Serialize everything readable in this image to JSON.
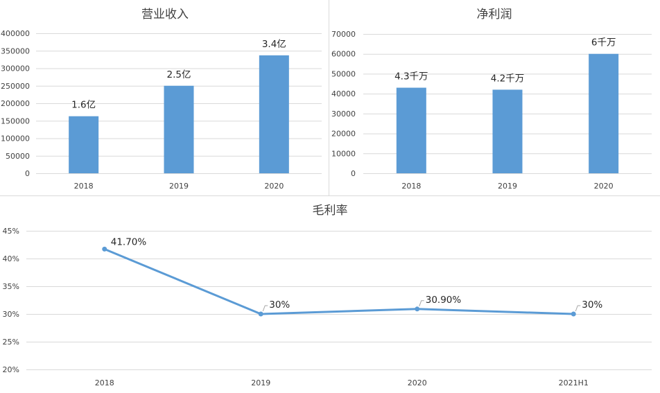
{
  "chart_data": [
    {
      "type": "bar",
      "title": "营业收入",
      "categories": [
        "2018",
        "2019",
        "2020"
      ],
      "values": [
        163000,
        250000,
        337000
      ],
      "data_labels": [
        "1.6亿",
        "2.5亿",
        "3.4亿"
      ],
      "ylim": [
        0,
        400000
      ],
      "yticks": [
        "0",
        "50000",
        "100000",
        "150000",
        "200000",
        "250000",
        "300000",
        "350000",
        "400000"
      ],
      "grid": true,
      "color": "#5b9bd5"
    },
    {
      "type": "bar",
      "title": "净利润",
      "categories": [
        "2018",
        "2019",
        "2020"
      ],
      "values": [
        43000,
        42000,
        60000
      ],
      "data_labels": [
        "4.3千万",
        "4.2千万",
        "6千万"
      ],
      "ylim": [
        0,
        70000
      ],
      "yticks": [
        "0",
        "10000",
        "20000",
        "30000",
        "40000",
        "50000",
        "60000",
        "70000"
      ],
      "grid": true,
      "color": "#5b9bd5"
    },
    {
      "type": "line",
      "title": "毛利率",
      "categories": [
        "2018",
        "2019",
        "2020",
        "2021H1"
      ],
      "values": [
        41.7,
        30,
        30.9,
        30
      ],
      "data_labels": [
        "41.70%",
        "30%",
        "30.90%",
        "30%"
      ],
      "ylim": [
        20,
        45
      ],
      "yticks": [
        "20%",
        "25%",
        "30%",
        "35%",
        "40%",
        "45%"
      ],
      "grid": true,
      "color": "#5b9bd5"
    }
  ]
}
